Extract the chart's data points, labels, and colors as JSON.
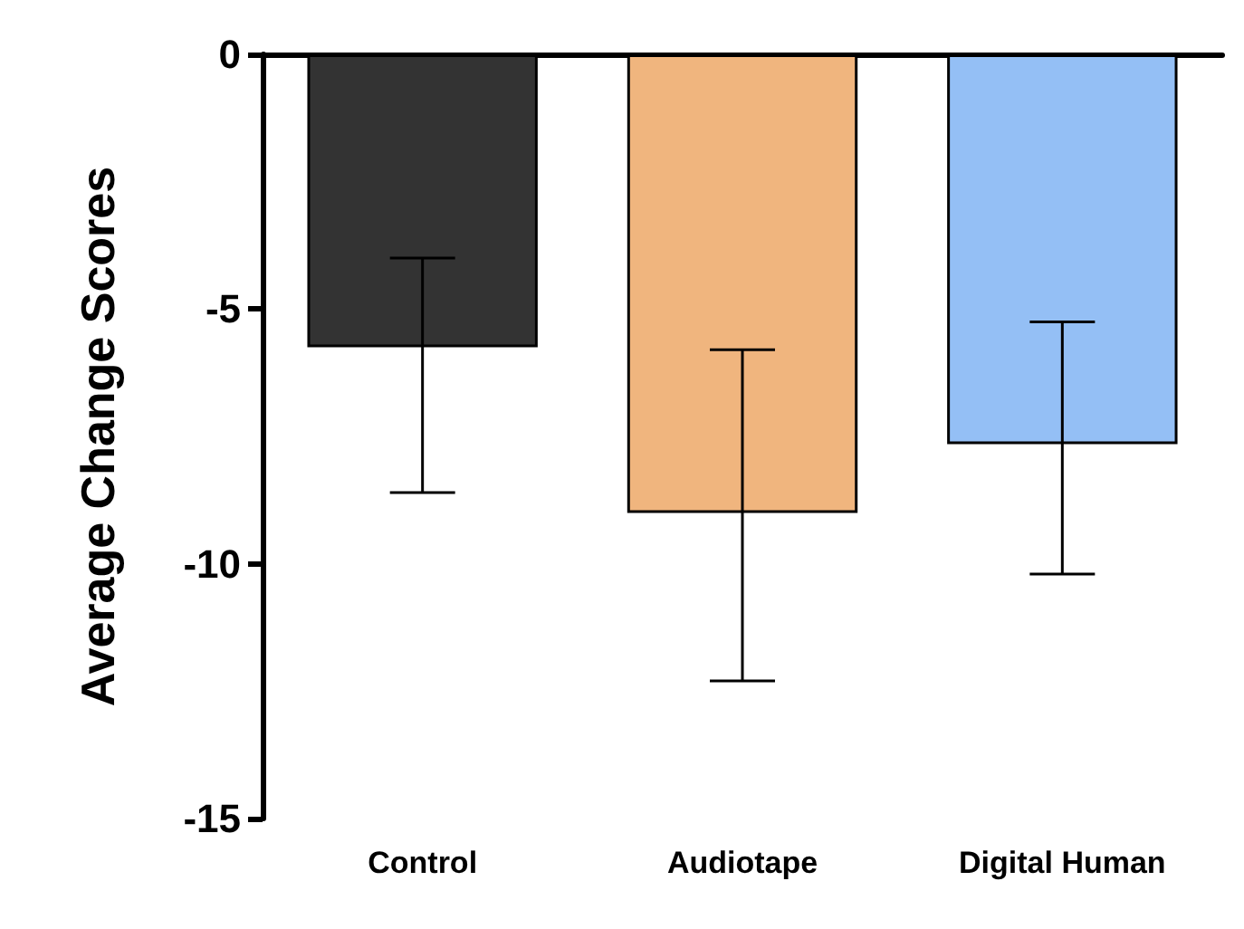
{
  "chart_data": {
    "type": "bar",
    "ylabel": "Average Change Scores",
    "categories": [
      "Control",
      "Audiotape",
      "Digital Human"
    ],
    "values": [
      -5.75,
      -9.0,
      -7.65
    ],
    "colors": [
      "#333333",
      "#f0b57e",
      "#94bff5"
    ],
    "errors": [
      [
        -8.6,
        -4.0
      ],
      [
        -12.3,
        -5.8
      ],
      [
        -10.2,
        -5.25
      ]
    ],
    "ylim": [
      -15,
      0
    ],
    "yticks": [
      -15,
      -10,
      -5,
      0
    ],
    "grid": false
  }
}
